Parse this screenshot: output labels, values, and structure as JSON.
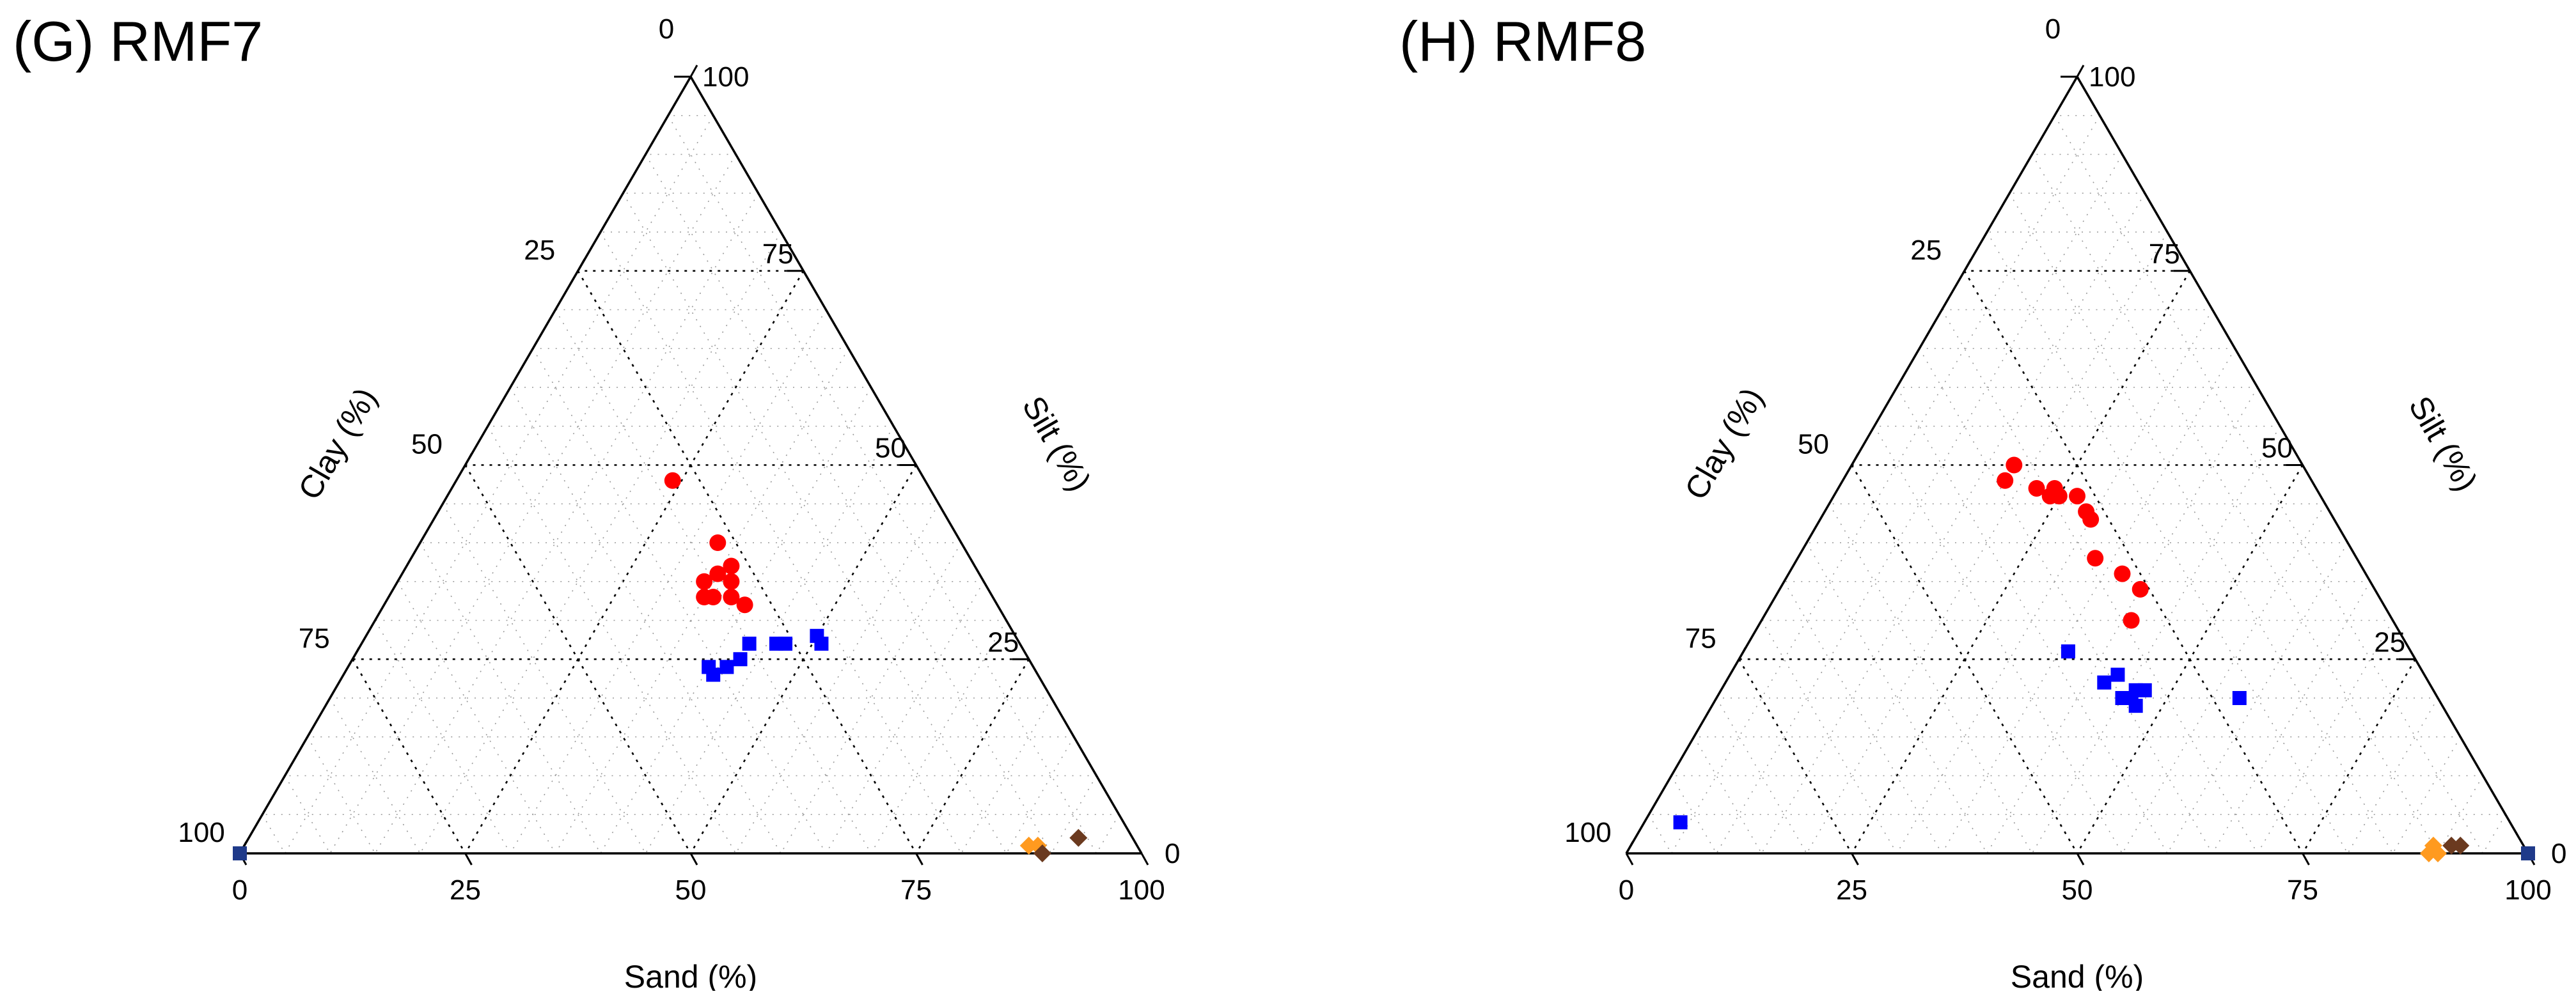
{
  "colors": {
    "cluster_a": "#ff0000",
    "cluster_b": "#0000ff",
    "cluster_c": "#ff9a1f",
    "cluster_c_dark": "#6b3a1f",
    "corner_marker": "#1f3a8a"
  },
  "chart_data": [
    {
      "type": "ternary-scatter",
      "title": "(G) RMF7",
      "axes": {
        "bottom": {
          "label": "Sand (%)",
          "ticks": [
            "0",
            "25",
            "50",
            "75",
            "100"
          ]
        },
        "right": {
          "label": "Silt (%)",
          "ticks": [
            "0",
            "25",
            "50",
            "75",
            "100"
          ]
        },
        "left": {
          "label": "Clay (%)",
          "ticks": [
            "0",
            "25",
            "50",
            "75",
            "100"
          ]
        }
      },
      "grid": true,
      "series": [
        {
          "color": "#ff0000",
          "marker": "circle",
          "points": [
            [
              24,
              28
            ],
            [
              33,
              27
            ],
            [
              34,
              31
            ],
            [
              35,
              32
            ],
            [
              36,
              31
            ],
            [
              35,
              29
            ],
            [
              36,
              27
            ],
            [
              37,
              28
            ],
            [
              38,
              29
            ],
            [
              40,
              28
            ]
          ]
        },
        {
          "color": "#0000ff",
          "marker": "square",
          "points": [
            [
              40,
              36
            ],
            [
              41,
              36
            ],
            [
              42,
              34
            ],
            [
              43,
              32
            ],
            [
              43,
              30
            ],
            [
              46,
              27
            ],
            [
              47,
              26
            ],
            [
              50,
              22
            ],
            [
              51,
              22
            ]
          ]
        },
        {
          "color": "#ff9a1f",
          "marker": "diamond",
          "points": [
            [
              87,
              12
            ],
            [
              88,
              11
            ]
          ]
        },
        {
          "color": "#6b3a1f",
          "marker": "diamond",
          "points": [
            [
              89,
              11
            ],
            [
              92,
              6
            ]
          ]
        },
        {
          "color": "#1f3a8a",
          "marker": "square",
          "points": [
            [
              0,
              100
            ]
          ]
        }
      ]
    },
    {
      "type": "ternary-scatter",
      "title": "(H) RMF8",
      "axes": {
        "bottom": {
          "label": "Sand (%)",
          "ticks": [
            "0",
            "25",
            "50",
            "75",
            "100"
          ]
        },
        "right": {
          "label": "Silt (%)",
          "ticks": [
            "0",
            "25",
            "50",
            "75",
            "100"
          ]
        },
        "left": {
          "label": "Clay (%)",
          "ticks": [
            "0",
            "25",
            "50",
            "75",
            "100"
          ]
        }
      },
      "grid": true,
      "series": [
        {
          "color": "#ff0000",
          "marker": "circle",
          "points": [
            [
              18,
              32
            ],
            [
              18,
              34
            ],
            [
              22,
              31
            ],
            [
              24,
              29
            ],
            [
              24,
              30
            ],
            [
              25,
              29
            ],
            [
              27,
              27
            ],
            [
              29,
              27
            ],
            [
              30,
              27
            ],
            [
              33,
              29
            ],
            [
              37,
              27
            ],
            [
              41,
              29
            ],
            [
              40,
              26
            ]
          ]
        },
        {
          "color": "#0000ff",
          "marker": "square",
          "points": [
            [
              4,
              92
            ],
            [
              36,
              38
            ],
            [
              42,
              36
            ],
            [
              43,
              34
            ],
            [
              45,
              35
            ],
            [
              46,
              34
            ],
            [
              47,
              34
            ],
            [
              46,
              33
            ],
            [
              47,
              32
            ],
            [
              58,
              22
            ]
          ]
        },
        {
          "color": "#ff9a1f",
          "marker": "diamond",
          "points": [
            [
              89,
              10
            ],
            [
              89,
              11
            ],
            [
              90,
              10
            ]
          ]
        },
        {
          "color": "#6b3a1f",
          "marker": "diamond",
          "points": [
            [
              91,
              8
            ],
            [
              92,
              7
            ]
          ]
        },
        {
          "color": "#1f3a8a",
          "marker": "square",
          "points": [
            [
              100,
              0
            ]
          ]
        }
      ]
    }
  ]
}
